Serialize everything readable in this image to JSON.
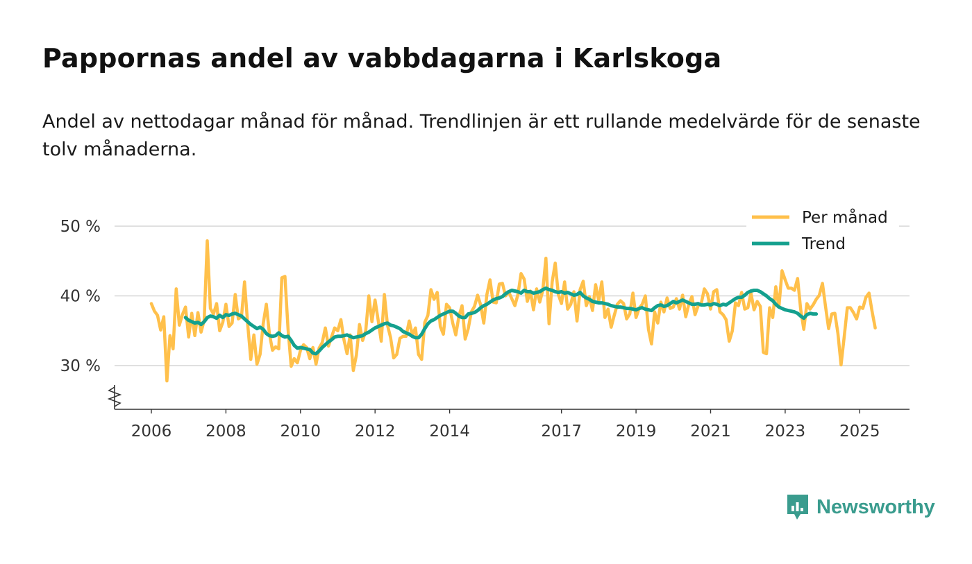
{
  "title": "Pappornas andel av vabbdagarna i Karlskoga",
  "subtitle": "Andel av nettodagar månad för månad. Trendlinjen är ett rullande medelvärde för de senaste tolv månaderna.",
  "brand": {
    "name": "Newsworthy"
  },
  "colors": {
    "monthly": "#ffc04b",
    "trend": "#14a08e",
    "grid": "#d6d6d6",
    "axis": "#333333"
  },
  "chart_data": {
    "type": "line",
    "title": "Pappornas andel av vabbdagarna i Karlskoga",
    "xlabel": "",
    "ylabel": "",
    "ylim": [
      24,
      50
    ],
    "xlim": [
      2005.5,
      2026.2
    ],
    "y_ticks": [
      {
        "value": 30,
        "label": "30 %"
      },
      {
        "value": 40,
        "label": "40 %"
      },
      {
        "value": 50,
        "label": "50 %"
      }
    ],
    "x_ticks": [
      {
        "value": 2006,
        "label": "2006"
      },
      {
        "value": 2008,
        "label": "2008"
      },
      {
        "value": 2010,
        "label": "2010"
      },
      {
        "value": 2012,
        "label": "2012"
      },
      {
        "value": 2014,
        "label": "2014"
      },
      {
        "value": 2017,
        "label": "2017"
      },
      {
        "value": 2019,
        "label": "2019"
      },
      {
        "value": 2021,
        "label": "2021"
      },
      {
        "value": 2023,
        "label": "2023"
      },
      {
        "value": 2025,
        "label": "2025"
      }
    ],
    "legend": {
      "position": "top-right",
      "entries": [
        "Per månad",
        "Trend"
      ]
    },
    "grid": true,
    "axis_break": true,
    "series": [
      {
        "name": "Per månad",
        "start": 2006.0,
        "step": 0.08333,
        "values": [
          38.9,
          37.8,
          37.2,
          35.1,
          37.0,
          27.8,
          34.3,
          32.4,
          41.0,
          35.8,
          37.3,
          38.4,
          34.1,
          37.5,
          34.3,
          37.6,
          34.8,
          36.5,
          47.9,
          38.2,
          37.4,
          38.9,
          35.0,
          36.2,
          38.8,
          35.6,
          36.1,
          40.2,
          36.7,
          37.0,
          42.0,
          36.0,
          30.9,
          34.4,
          30.2,
          31.6,
          36.0,
          38.8,
          34.6,
          32.2,
          32.7,
          32.4,
          42.6,
          42.8,
          35.2,
          29.9,
          31.0,
          30.4,
          32.2,
          33.0,
          32.6,
          31.0,
          32.6,
          30.2,
          32.5,
          33.3,
          35.4,
          32.8,
          34.1,
          35.4,
          35.0,
          36.6,
          33.7,
          31.7,
          34.4,
          29.3,
          31.5,
          35.9,
          33.6,
          35.0,
          40.0,
          36.3,
          39.4,
          36.5,
          33.5,
          40.2,
          35.8,
          34.0,
          31.1,
          31.6,
          33.9,
          34.2,
          34.2,
          36.4,
          34.4,
          35.4,
          31.6,
          30.9,
          36.2,
          37.2,
          40.9,
          39.5,
          40.5,
          35.6,
          34.5,
          38.8,
          38.3,
          36.1,
          34.4,
          37.1,
          38.6,
          33.8,
          35.3,
          37.7,
          38.5,
          40.1,
          38.7,
          36.1,
          40.2,
          42.3,
          39.1,
          39.0,
          41.7,
          41.8,
          40.0,
          40.6,
          39.6,
          38.6,
          40.2,
          43.2,
          42.4,
          39.2,
          40.7,
          38.0,
          41.0,
          39.1,
          40.8,
          45.4,
          36.0,
          42.0,
          44.7,
          40.2,
          38.9,
          42.0,
          38.1,
          38.8,
          40.6,
          36.4,
          40.9,
          42.1,
          38.6,
          39.9,
          37.9,
          41.6,
          39.3,
          42.0,
          36.9,
          38.1,
          35.5,
          37.2,
          38.8,
          39.3,
          38.9,
          36.7,
          37.4,
          40.4,
          36.9,
          38.2,
          38.8,
          40.0,
          35.2,
          33.1,
          37.7,
          36.1,
          39.1,
          37.7,
          39.7,
          38.2,
          38.4,
          39.6,
          38.1,
          40.1,
          37.0,
          38.8,
          39.9,
          37.3,
          38.6,
          38.9,
          41.0,
          40.3,
          38.1,
          40.6,
          40.9,
          37.7,
          37.3,
          36.6,
          33.5,
          35.0,
          39.0,
          38.6,
          40.5,
          38.1,
          38.3,
          40.4,
          38.0,
          39.2,
          38.5,
          31.9,
          31.7,
          38.3,
          36.9,
          41.3,
          38.4,
          43.6,
          42.3,
          41.1,
          41.1,
          40.8,
          42.5,
          38.1,
          35.2,
          38.9,
          38.1,
          38.7,
          39.5,
          40.1,
          41.8,
          38.5,
          35.3,
          37.4,
          37.5,
          34.6,
          30.1,
          34.1,
          38.3,
          38.3,
          37.6,
          36.7,
          38.4,
          38.2,
          39.8,
          40.4,
          37.7,
          35.4
        ]
      },
      {
        "name": "Trend",
        "start": 2006.9167,
        "step": 0.08333,
        "values": [
          36.9,
          36.5,
          36.3,
          36.1,
          36.2,
          35.9,
          36.3,
          36.9,
          37.1,
          37.0,
          36.8,
          37.2,
          36.9,
          37.3,
          37.2,
          37.4,
          37.5,
          37.3,
          37.1,
          36.7,
          36.3,
          35.9,
          35.6,
          35.3,
          35.5,
          35.2,
          34.6,
          34.3,
          34.2,
          34.3,
          34.7,
          34.3,
          34.1,
          34.2,
          33.6,
          32.9,
          32.5,
          32.6,
          32.5,
          32.4,
          32.3,
          31.8,
          31.7,
          32.1,
          32.6,
          33.0,
          33.4,
          33.7,
          34.1,
          34.2,
          34.2,
          34.3,
          34.4,
          34.2,
          34.0,
          34.1,
          34.2,
          34.3,
          34.6,
          34.8,
          35.1,
          35.4,
          35.6,
          35.8,
          36.0,
          36.1,
          35.8,
          35.7,
          35.5,
          35.3,
          34.9,
          34.7,
          34.5,
          34.2,
          34.0,
          34.0,
          34.5,
          35.3,
          36.0,
          36.4,
          36.6,
          36.9,
          37.2,
          37.4,
          37.6,
          37.8,
          37.8,
          37.5,
          37.1,
          36.9,
          36.9,
          37.4,
          37.5,
          37.6,
          37.9,
          38.3,
          38.6,
          38.8,
          39.1,
          39.4,
          39.6,
          39.7,
          39.9,
          40.3,
          40.6,
          40.8,
          40.7,
          40.6,
          40.4,
          40.8,
          40.6,
          40.6,
          40.4,
          40.5,
          40.6,
          40.9,
          41.1,
          40.9,
          40.8,
          40.6,
          40.5,
          40.6,
          40.4,
          40.5,
          40.3,
          40.1,
          40.2,
          40.5,
          40.0,
          39.7,
          39.5,
          39.2,
          39.1,
          39.0,
          39.0,
          38.9,
          38.8,
          38.6,
          38.5,
          38.4,
          38.4,
          38.3,
          38.2,
          38.2,
          38.1,
          38.0,
          38.2,
          38.3,
          38.1,
          38.0,
          37.9,
          38.3,
          38.6,
          38.7,
          38.5,
          38.6,
          38.9,
          39.2,
          39.0,
          39.2,
          39.4,
          39.2,
          39.0,
          38.8,
          38.8,
          38.9,
          38.7,
          38.7,
          38.8,
          38.7,
          38.9,
          38.8,
          38.6,
          38.8,
          38.7,
          39.0,
          39.3,
          39.6,
          39.8,
          39.8,
          40.1,
          40.5,
          40.7,
          40.8,
          40.8,
          40.6,
          40.3,
          40.0,
          39.6,
          39.3,
          38.8,
          38.4,
          38.2,
          38.0,
          37.9,
          37.8,
          37.7,
          37.5,
          37.1,
          36.8,
          37.3,
          37.5,
          37.4,
          37.4
        ]
      }
    ]
  }
}
